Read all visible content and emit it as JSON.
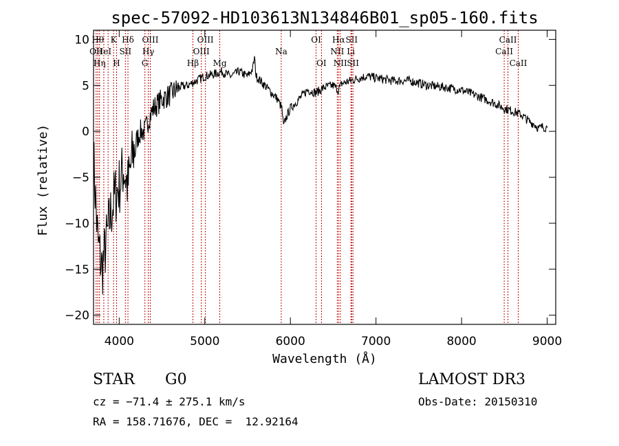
{
  "chart_data": {
    "type": "line",
    "title": "spec-57092-HD103613N134846B01_sp05-160.fits",
    "xlabel": "Wavelength (Å)",
    "ylabel": "Flux (relative)",
    "xlim": [
      3700,
      9100
    ],
    "ylim": [
      -21,
      11
    ],
    "xticks": [
      4000,
      5000,
      6000,
      7000,
      8000,
      9000
    ],
    "yticks": [
      10,
      5,
      0,
      -5,
      -10,
      -15,
      -20
    ],
    "grid": false,
    "line_color": "#000000",
    "marker_color": "#c00000",
    "series": [
      {
        "x": [
          3700,
          3750,
          3800,
          3850,
          3900,
          3950,
          4000,
          4050,
          4100,
          4150,
          4200,
          4250,
          4300,
          4350,
          4400,
          4450,
          4500,
          4600,
          4700,
          4800,
          4900,
          5000,
          5100,
          5200,
          5300,
          5400,
          5500,
          5560,
          5580,
          5600,
          5700,
          5800,
          5850,
          5900,
          5920,
          5950,
          6000,
          6100,
          6200,
          6300,
          6400,
          6500,
          6560,
          6600,
          6700,
          6800,
          6900,
          7000,
          7200,
          7400,
          7600,
          7800,
          8000,
          8200,
          8400,
          8500,
          8600,
          8700,
          8800,
          8850,
          8900,
          8950,
          9000
        ],
        "y": [
          -3,
          -12,
          -15,
          -12,
          -9,
          -7,
          -6,
          -4,
          -6,
          -3,
          -1,
          0,
          0,
          1.5,
          2.5,
          3,
          3.5,
          4,
          4.8,
          5,
          5.5,
          6,
          6.2,
          6.5,
          6,
          6.5,
          6,
          6.8,
          8,
          6,
          5,
          4,
          3.5,
          2.5,
          0.5,
          1.5,
          2.5,
          3.5,
          4.5,
          4.2,
          4.8,
          5,
          4.5,
          5.2,
          5.5,
          5.8,
          6,
          5.8,
          5.5,
          5.5,
          5,
          4.8,
          4.5,
          3.8,
          3,
          2.5,
          2.2,
          1.8,
          1,
          0.8,
          0.3,
          0.5,
          0.4
        ]
      }
    ],
    "line_markers": [
      {
        "wave": 3730,
        "label": "OII",
        "row": 2
      },
      {
        "wave": 3750,
        "label": "Hθ",
        "row": 1
      },
      {
        "wave": 3770,
        "label": "Hη",
        "row": 3
      },
      {
        "wave": 3820,
        "label": "HeI",
        "row": 2
      },
      {
        "wave": 3870,
        "label": "",
        "row": 1
      },
      {
        "wave": 3934,
        "label": "K",
        "row": 1
      },
      {
        "wave": 3969,
        "label": "H",
        "row": 3
      },
      {
        "wave": 4072,
        "label": "SII",
        "row": 2
      },
      {
        "wave": 4102,
        "label": "Hδ",
        "row": 1
      },
      {
        "wave": 4300,
        "label": "G",
        "row": 3
      },
      {
        "wave": 4340,
        "label": "Hγ",
        "row": 2
      },
      {
        "wave": 4363,
        "label": "OIII",
        "row": 1
      },
      {
        "wave": 4861,
        "label": "Hβ",
        "row": 3
      },
      {
        "wave": 4959,
        "label": "OIII",
        "row": 2
      },
      {
        "wave": 5007,
        "label": "OIII",
        "row": 1
      },
      {
        "wave": 5175,
        "label": "Mg",
        "row": 3
      },
      {
        "wave": 5893,
        "label": "Na",
        "row": 2
      },
      {
        "wave": 6300,
        "label": "OI",
        "row": 1
      },
      {
        "wave": 6363,
        "label": "OI",
        "row": 3
      },
      {
        "wave": 6548,
        "label": "NII",
        "row": 2
      },
      {
        "wave": 6563,
        "label": "Hα",
        "row": 1
      },
      {
        "wave": 6583,
        "label": "NII",
        "row": 3
      },
      {
        "wave": 6707,
        "label": "Li",
        "row": 2
      },
      {
        "wave": 6716,
        "label": "SII",
        "row": 1
      },
      {
        "wave": 6731,
        "label": "SII",
        "row": 3
      },
      {
        "wave": 8498,
        "label": "CaII",
        "row": 2
      },
      {
        "wave": 8542,
        "label": "CaII",
        "row": 1
      },
      {
        "wave": 8662,
        "label": "CaII",
        "row": 3
      }
    ]
  },
  "info": {
    "object_class": "STAR",
    "subclass": "G0",
    "survey": "LAMOST DR3",
    "cz": "cz = −71.4 ± 275.1 km/s",
    "obs_date": "Obs-Date: 20150310",
    "coords": "RA = 158.71676, DEC =  12.92164"
  }
}
